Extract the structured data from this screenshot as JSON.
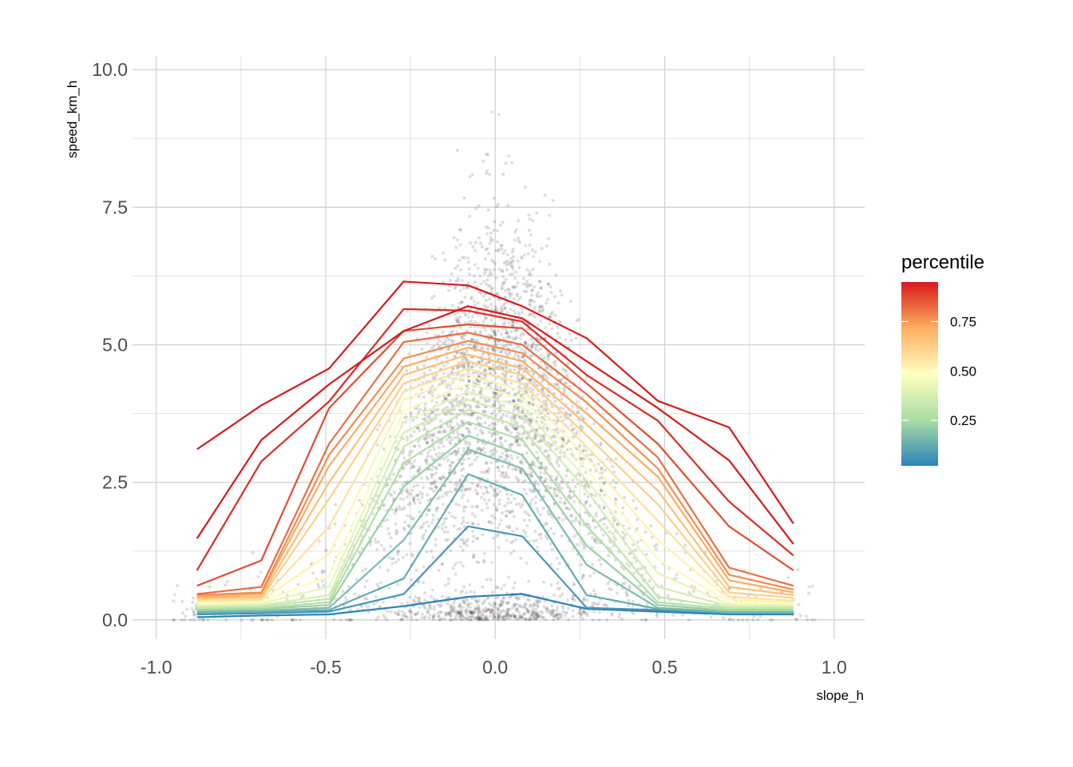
{
  "chart_data": {
    "type": "line",
    "xlabel": "slope_h",
    "ylabel": "speed_km_h",
    "xlim": [
      -1.07,
      1.09
    ],
    "ylim": [
      -0.35,
      10.25
    ],
    "x_ticks": [
      -1.0,
      -0.5,
      0.0,
      0.5,
      1.0
    ],
    "x_tick_labels": [
      "-1.0",
      "-0.5",
      "0.0",
      "0.5",
      "1.0"
    ],
    "y_ticks": [
      0.0,
      2.5,
      5.0,
      7.5,
      10.0
    ],
    "y_tick_labels": [
      "0.0",
      "2.5",
      "5.0",
      "7.5",
      "10.0"
    ],
    "grid": true,
    "x": [
      -0.88,
      -0.69,
      -0.49,
      -0.27,
      -0.08,
      0.08,
      0.27,
      0.48,
      0.69,
      0.88
    ],
    "scatter_note_color": "#000000",
    "legend": {
      "title": "percentile",
      "placement": "right",
      "range": [
        0.02,
        0.95
      ],
      "ticks": [
        0.25,
        0.5,
        0.75
      ],
      "tick_labels": [
        "0.25",
        "0.50",
        "0.75"
      ],
      "colors": [
        "#2b83ba",
        "#abdda4",
        "#ffffbf",
        "#fdae61",
        "#d7191c"
      ]
    },
    "series": [
      {
        "p": 0.02,
        "values": [
          0.05,
          0.08,
          0.1,
          0.25,
          0.42,
          0.47,
          0.2,
          0.15,
          0.1,
          0.1
        ]
      },
      {
        "p": 0.07,
        "values": [
          0.1,
          0.12,
          0.15,
          0.47,
          1.7,
          1.52,
          0.22,
          0.18,
          0.12,
          0.12
        ]
      },
      {
        "p": 0.12,
        "values": [
          0.13,
          0.15,
          0.18,
          0.75,
          2.65,
          2.27,
          0.45,
          0.2,
          0.13,
          0.13
        ]
      },
      {
        "p": 0.17,
        "values": [
          0.15,
          0.17,
          0.22,
          1.45,
          3.1,
          2.75,
          1.0,
          0.22,
          0.15,
          0.15
        ]
      },
      {
        "p": 0.22,
        "values": [
          0.18,
          0.2,
          0.27,
          2.42,
          3.35,
          3.0,
          1.35,
          0.27,
          0.17,
          0.17
        ]
      },
      {
        "p": 0.27,
        "values": [
          0.2,
          0.22,
          0.32,
          2.85,
          3.6,
          3.27,
          1.7,
          0.32,
          0.2,
          0.2
        ]
      },
      {
        "p": 0.32,
        "values": [
          0.22,
          0.25,
          0.38,
          3.15,
          3.82,
          3.5,
          2.0,
          0.42,
          0.22,
          0.22
        ]
      },
      {
        "p": 0.37,
        "values": [
          0.25,
          0.27,
          0.45,
          3.4,
          4.0,
          3.7,
          2.35,
          0.6,
          0.25,
          0.25
        ]
      },
      {
        "p": 0.42,
        "values": [
          0.27,
          0.3,
          0.6,
          3.6,
          4.15,
          3.87,
          2.55,
          0.85,
          0.28,
          0.27
        ]
      },
      {
        "p": 0.47,
        "values": [
          0.3,
          0.32,
          0.8,
          3.8,
          4.3,
          4.02,
          2.75,
          1.1,
          0.32,
          0.3
        ]
      },
      {
        "p": 0.52,
        "values": [
          0.32,
          0.35,
          1.2,
          4.0,
          4.45,
          4.17,
          2.95,
          1.45,
          0.37,
          0.32
        ]
      },
      {
        "p": 0.57,
        "values": [
          0.35,
          0.37,
          1.7,
          4.15,
          4.57,
          4.3,
          3.15,
          1.8,
          0.42,
          0.35
        ]
      },
      {
        "p": 0.62,
        "values": [
          0.38,
          0.4,
          2.2,
          4.3,
          4.7,
          4.45,
          3.35,
          2.1,
          0.5,
          0.4
        ]
      },
      {
        "p": 0.67,
        "values": [
          0.4,
          0.43,
          2.5,
          4.45,
          4.82,
          4.57,
          3.55,
          2.35,
          0.6,
          0.45
        ]
      },
      {
        "p": 0.72,
        "values": [
          0.42,
          0.47,
          2.8,
          4.6,
          4.95,
          4.7,
          3.75,
          2.6,
          0.72,
          0.5
        ]
      },
      {
        "p": 0.77,
        "values": [
          0.45,
          0.5,
          3.0,
          4.75,
          5.07,
          4.85,
          3.95,
          2.75,
          0.82,
          0.55
        ]
      },
      {
        "p": 0.82,
        "values": [
          0.47,
          0.6,
          3.2,
          5.05,
          5.22,
          5.0,
          4.1,
          2.95,
          0.95,
          0.62
        ]
      },
      {
        "p": 0.87,
        "values": [
          0.62,
          1.08,
          3.85,
          5.25,
          5.37,
          5.3,
          4.3,
          3.2,
          1.7,
          0.9
        ]
      },
      {
        "p": 0.92,
        "values": [
          0.9,
          2.88,
          3.97,
          5.65,
          5.62,
          5.42,
          4.45,
          3.62,
          2.15,
          1.17
        ]
      },
      {
        "p": 0.95,
        "values": [
          1.48,
          3.27,
          4.28,
          5.25,
          5.7,
          5.48,
          4.7,
          3.85,
          2.9,
          1.38
        ]
      },
      {
        "p": 0.97,
        "values": [
          3.1,
          3.9,
          4.57,
          6.15,
          6.08,
          5.7,
          5.12,
          3.98,
          3.5,
          1.75
        ]
      }
    ]
  }
}
